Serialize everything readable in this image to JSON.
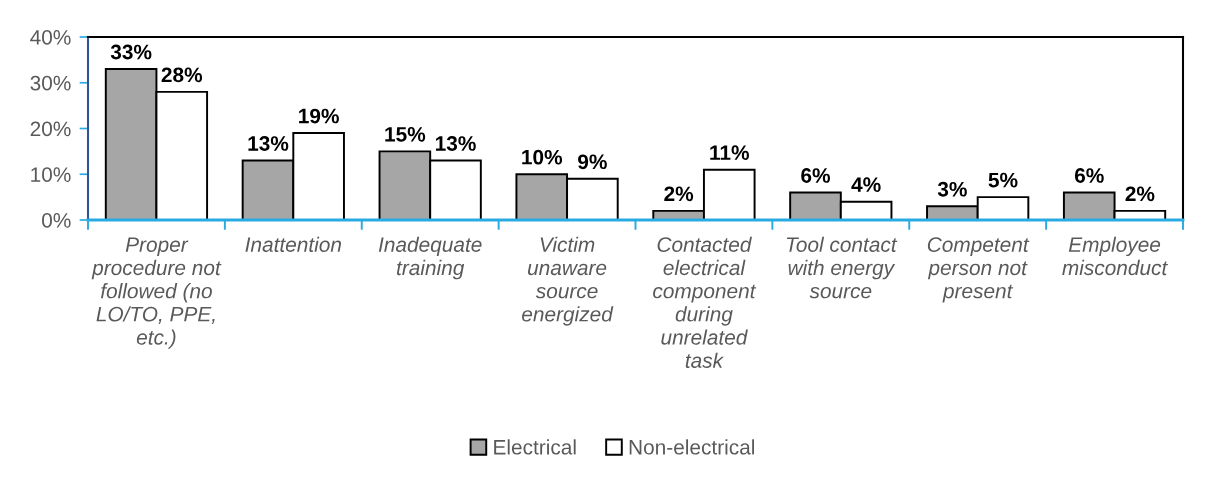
{
  "chart_data": {
    "type": "bar",
    "categories": [
      "Proper\nprocedure not\nfollowed (no\nLO/TO, PPE,\netc.)",
      "Inattention",
      "Inadequate\ntraining",
      "Victim\nunaware\nsource\nenergized",
      "Contacted\nelectrical\ncomponent\nduring\nunrelated\ntask",
      "Tool contact\nwith energy\nsource",
      "Competent\nperson not\npresent",
      "Employee\nmisconduct"
    ],
    "series": [
      {
        "name": "Electrical",
        "color": "#a6a6a6",
        "values": [
          33,
          13,
          15,
          10,
          2,
          6,
          3,
          6
        ],
        "value_labels": [
          "33%",
          "13%",
          "15%",
          "10%",
          "2%",
          "6%",
          "3%",
          "6%"
        ]
      },
      {
        "name": "Non-electrical",
        "color": "#ffffff",
        "values": [
          28,
          19,
          13,
          9,
          11,
          4,
          5,
          2
        ],
        "value_labels": [
          "28%",
          "19%",
          "13%",
          "9%",
          "11%",
          "4%",
          "5%",
          "2%"
        ]
      }
    ],
    "ylim": [
      0,
      40
    ],
    "yticks": [
      {
        "value": 0,
        "label": "0%"
      },
      {
        "value": 10,
        "label": "10%"
      },
      {
        "value": 20,
        "label": "20%"
      },
      {
        "value": 30,
        "label": "30%"
      },
      {
        "value": 40,
        "label": "40%"
      }
    ],
    "legend": "bottom"
  }
}
